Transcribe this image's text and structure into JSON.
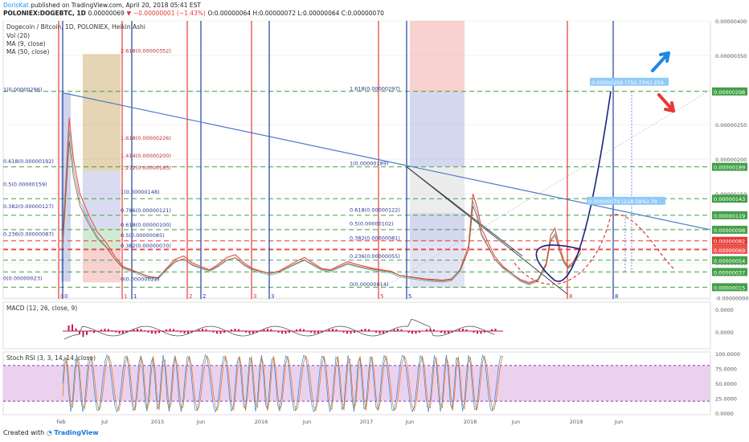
{
  "header": {
    "user": "DorisKat",
    "published": "published on TradingView.com, April 20, 2018 05:41 EST",
    "symbol": "POLONIEX:DOGEBTC, 1D",
    "price": "0.00000069",
    "change": "−0.00000001 (−1.43%)",
    "ohlc": "O:0.00000064 H:0.00000072 L:0.00000064 C:0.00000070"
  },
  "legend": {
    "title": "Dogecoin / Bitcoin, 1D, POLONIEX, Heikin Ashi",
    "vol": "Vol (20)",
    "ma9": "MA (9, close)",
    "ma50": "MA (50, close)"
  },
  "footer": {
    "created_with": "Created with",
    "brand": "TradingView"
  },
  "colors": {
    "up": "#26a69a",
    "down": "#ef5350",
    "blue_line": "#1e3fa8",
    "red_line": "#e53935",
    "fib_green": "#43a047",
    "rsi_band": "#e1bee7"
  },
  "chart_data": {
    "type": "line",
    "title": "Dogecoin / Bitcoin, 1D, POLONIEX, Heikin Ashi",
    "x_ticks": [
      "Feb",
      "Jul",
      "2015",
      "Jun",
      "2016",
      "Jun",
      "2017",
      "Jun",
      "2018",
      "Jun",
      "2019",
      "Jun"
    ],
    "y_ticks": [
      "0.00000400",
      "0.00000350",
      "0.00000300",
      "0.00000250",
      "0.00000200",
      "0.00000150",
      "0.00000100",
      "0.00000050",
      "-0.00000000"
    ],
    "ylim": [
      -2e-08,
      4e-06
    ],
    "price_badges": [
      {
        "label": "0.00000298",
        "value": 2.98e-06,
        "color": "#43a047"
      },
      {
        "label": "0.00000189",
        "value": 1.89e-06,
        "color": "#43a047"
      },
      {
        "label": "0.00000143",
        "value": 1.43e-06,
        "color": "#43a047"
      },
      {
        "label": "0.00000119",
        "value": 1.19e-06,
        "color": "#43a047"
      },
      {
        "label": "0.00000098",
        "value": 9.8e-07,
        "color": "#43a047"
      },
      {
        "label": "0.00000082",
        "value": 8.2e-07,
        "color": "#e53935"
      },
      {
        "label": "0.00000070",
        "value": 7e-07,
        "color": "#e53935"
      },
      {
        "label": "0.00000069",
        "value": 6.9e-07,
        "color": "#ef5350"
      },
      {
        "label": "0.00000054",
        "value": 5.4e-07,
        "color": "#43a047"
      },
      {
        "label": "0.00000037",
        "value": 3.7e-07,
        "color": "#43a047"
      },
      {
        "label": "0.00000015",
        "value": 1.5e-07,
        "color": "#43a047"
      }
    ],
    "fib_labels_left": [
      {
        "text": "1(0.00000296)",
        "value": 2.96e-06
      },
      {
        "text": "0.618(0.00000192)",
        "value": 1.92e-06
      },
      {
        "text": "0.5(0.00000159)",
        "value": 1.59e-06
      },
      {
        "text": "0.382(0.00000127)",
        "value": 1.27e-06
      },
      {
        "text": "0.236(0.00000087)",
        "value": 8.7e-07
      },
      {
        "text": "0(0.00000023)",
        "value": 2.3e-07
      }
    ],
    "fib_labels_second": [
      {
        "text": "2.618(0.00000352)",
        "value": 3.52e-06
      },
      {
        "text": "1.618(0.00000226)",
        "value": 2.26e-06
      },
      {
        "text": "1.414(0.00000200)",
        "value": 2e-06
      },
      {
        "text": "1.272(0.00000183)",
        "value": 1.83e-06
      },
      {
        "text": "1(0.00000148)",
        "value": 1.48e-06
      },
      {
        "text": "0.786(0.00000121)",
        "value": 1.21e-06
      },
      {
        "text": "0.618(0.00000100)",
        "value": 1e-06
      },
      {
        "text": "0.5(0.00000085)",
        "value": 8.5e-07
      },
      {
        "text": "0.382(0.00000070)",
        "value": 7e-07
      },
      {
        "text": "0(0.00000022)",
        "value": 2.2e-07
      }
    ],
    "fib_labels_third": [
      {
        "text": "1.618(0.00000297)",
        "value": 2.97e-06
      },
      {
        "text": "1(0.00000189)",
        "value": 1.89e-06
      },
      {
        "text": "0.618(0.00000122)",
        "value": 1.22e-06
      },
      {
        "text": "0.5(0.00000102)",
        "value": 1.02e-06
      },
      {
        "text": "0.382(0.00000081)",
        "value": 8.1e-07
      },
      {
        "text": "0.236(0.00000055)",
        "value": 5.5e-07
      },
      {
        "text": "0(0.00000014)",
        "value": 1.4e-07
      }
    ],
    "annotations": [
      {
        "text": "0.00000259 (750.73%) 259",
        "value": 2.98e-06
      },
      {
        "text": "0.00000079 (218.58%) 79",
        "value": 1.19e-06
      }
    ],
    "wave_numbers": [
      "0",
      "0",
      "1",
      "1",
      "2",
      "2",
      "3",
      "3",
      "5",
      "5",
      "8",
      "8"
    ],
    "price_series": [
      [
        0,
        8e-07
      ],
      [
        3,
        2.6e-06
      ],
      [
        5,
        2e-06
      ],
      [
        8,
        1.5e-06
      ],
      [
        12,
        1.2e-06
      ],
      [
        16,
        9.5e-07
      ],
      [
        20,
        8e-07
      ],
      [
        24,
        6e-07
      ],
      [
        28,
        4.5e-07
      ],
      [
        32,
        4e-07
      ],
      [
        36,
        3.5e-07
      ],
      [
        40,
        3e-07
      ],
      [
        44,
        2.8e-07
      ],
      [
        48,
        4.2e-07
      ],
      [
        52,
        5.5e-07
      ],
      [
        56,
        6e-07
      ],
      [
        60,
        5e-07
      ],
      [
        64,
        4.5e-07
      ],
      [
        68,
        4e-07
      ],
      [
        72,
        4.8e-07
      ],
      [
        76,
        5.8e-07
      ],
      [
        80,
        6.2e-07
      ],
      [
        84,
        5e-07
      ],
      [
        88,
        4.2e-07
      ],
      [
        92,
        3.8e-07
      ],
      [
        96,
        3.5e-07
      ],
      [
        100,
        3.8e-07
      ],
      [
        104,
        4.5e-07
      ],
      [
        108,
        5.2e-07
      ],
      [
        112,
        5.8e-07
      ],
      [
        116,
        5e-07
      ],
      [
        120,
        4.2e-07
      ],
      [
        124,
        4e-07
      ],
      [
        128,
        4.6e-07
      ],
      [
        132,
        5.2e-07
      ],
      [
        136,
        4.8e-07
      ],
      [
        140,
        4.5e-07
      ],
      [
        144,
        4.2e-07
      ],
      [
        148,
        4e-07
      ],
      [
        152,
        3.8e-07
      ],
      [
        156,
        3.2e-07
      ],
      [
        160,
        3e-07
      ],
      [
        164,
        2.8e-07
      ],
      [
        168,
        2.6e-07
      ],
      [
        172,
        2.5e-07
      ],
      [
        176,
        2.4e-07
      ],
      [
        180,
        2.6e-07
      ],
      [
        184,
        4e-07
      ],
      [
        188,
        7.5e-07
      ],
      [
        190,
        1.5e-06
      ],
      [
        192,
        1.3e-06
      ],
      [
        194,
        1e-06
      ],
      [
        197,
        8e-07
      ],
      [
        200,
        6e-07
      ],
      [
        204,
        4.5e-07
      ],
      [
        208,
        3.5e-07
      ],
      [
        212,
        2.5e-07
      ],
      [
        216,
        2e-07
      ],
      [
        220,
        2.5e-07
      ],
      [
        224,
        5e-07
      ],
      [
        226,
        9e-07
      ],
      [
        228,
        1e-06
      ],
      [
        230,
        7.5e-07
      ],
      [
        232,
        5.5e-07
      ],
      [
        234,
        4.5e-07
      ],
      [
        236,
        5e-07
      ],
      [
        238,
        6e-07
      ],
      [
        240,
        7e-07
      ]
    ],
    "macd": {
      "label": "MACD (12, 26, close, 9)",
      "y_ticks": [
        "0.0000",
        "0.0000"
      ]
    },
    "stoch_rsi": {
      "label": "Stoch RSI (3, 3, 14, 14, close)",
      "y_ticks": [
        "100.0000",
        "75.0000",
        "50.0000",
        "25.0000",
        "0.0000"
      ],
      "band": [
        20,
        80
      ]
    }
  }
}
